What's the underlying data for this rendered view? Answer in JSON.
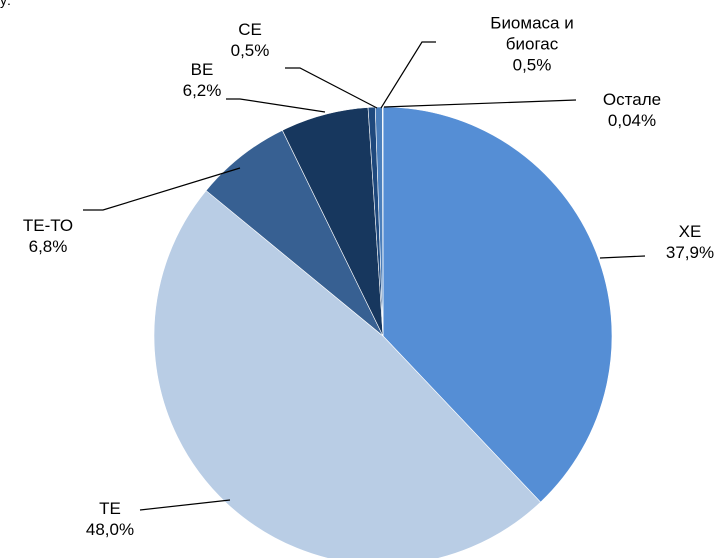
{
  "chart_data": {
    "type": "pie",
    "caption": "у:",
    "categories": [
      "ХЕ",
      "ТЕ",
      "ТЕ-ТО",
      "ВЕ",
      "СЕ",
      "Биомаса и биогас",
      "Остале"
    ],
    "values": [
      37.9,
      48.0,
      6.8,
      6.2,
      0.5,
      0.5,
      0.04
    ],
    "value_labels": [
      "37,9%",
      "48,0%",
      "6,8%",
      "6,2%",
      "0,5%",
      "0,5%",
      "0,04%"
    ],
    "colors": [
      "#558ed5",
      "#b9cde5",
      "#376092",
      "#17375e",
      "#1f497d",
      "#4a7ebb",
      "#8eb4e3"
    ]
  }
}
